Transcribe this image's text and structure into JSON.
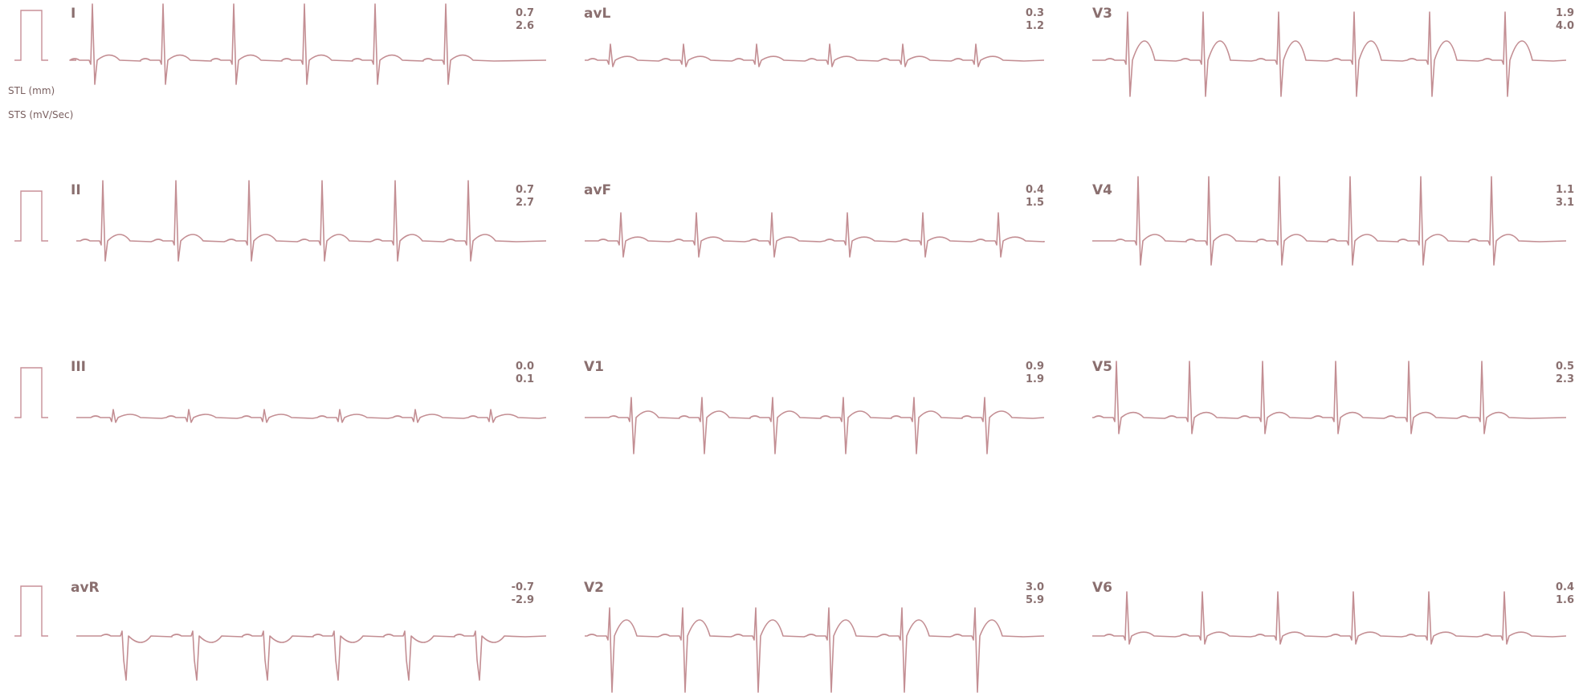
{
  "legend": {
    "stl": "STL (mm)",
    "sts": "STS (mV/Sec)"
  },
  "leads": [
    {
      "name": "I",
      "stl": "0.7",
      "sts": "2.6"
    },
    {
      "name": "II",
      "stl": "0.7",
      "sts": "2.7"
    },
    {
      "name": "III",
      "stl": "0.0",
      "sts": "0.1"
    },
    {
      "name": "avR",
      "stl": "-0.7",
      "sts": "-2.9"
    },
    {
      "name": "avL",
      "stl": "0.3",
      "sts": "1.2"
    },
    {
      "name": "avF",
      "stl": "0.4",
      "sts": "1.5"
    },
    {
      "name": "V1",
      "stl": "0.9",
      "sts": "1.9"
    },
    {
      "name": "V2",
      "stl": "3.0",
      "sts": "5.9"
    },
    {
      "name": "V3",
      "stl": "1.9",
      "sts": "4.0"
    },
    {
      "name": "V4",
      "stl": "1.1",
      "sts": "3.1"
    },
    {
      "name": "V5",
      "stl": "0.5",
      "sts": "2.3"
    },
    {
      "name": "V6",
      "stl": "0.4",
      "sts": "1.6"
    }
  ]
}
